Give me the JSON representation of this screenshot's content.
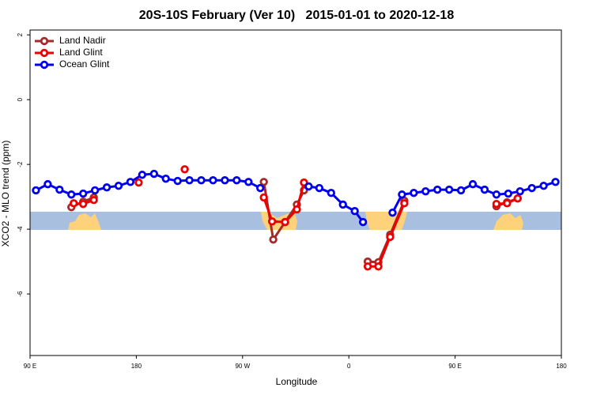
{
  "chart_data": {
    "type": "line",
    "title": "20S-10S February (Ver 10)   2015-01-01 to 2020-12-18",
    "xlabel": "Longitude",
    "ylabel": "XCO2 - MLO trend (ppm)",
    "xlim": [
      90,
      540
    ],
    "xticks": [
      {
        "value": 90,
        "label": "90 E"
      },
      180,
      {
        "value": 270,
        "label": "90 W"
      },
      {
        "value": 360,
        "label": "0"
      },
      {
        "value": 450,
        "label": "90 E"
      },
      {
        "value": 540,
        "label": "180"
      }
    ],
    "ylim": [
      -7.9,
      2.15
    ],
    "yticks": [
      2,
      0,
      -2,
      -4,
      -6
    ],
    "legend": "top-left",
    "series": [
      {
        "name": "Land Nadir",
        "color": "#a52a2a",
        "x": [
          125,
          135,
          144,
          null,
          288,
          296,
          306,
          316,
          322,
          null,
          376,
          385,
          395,
          407,
          null,
          485,
          494,
          503
        ],
        "values": [
          -3.32,
          -3.15,
          -3.02,
          null,
          -2.54,
          -4.32,
          -3.78,
          -3.24,
          -2.8,
          null,
          -5.0,
          -5.02,
          -4.17,
          -3.12,
          null,
          -3.29,
          -3.17,
          -3.05
        ]
      },
      {
        "name": "Land Glint",
        "color": "#ee0000",
        "x": [
          127,
          135,
          144,
          null,
          182,
          null,
          221,
          null,
          288,
          295,
          306,
          316,
          322,
          null,
          376,
          385,
          395,
          407,
          null,
          485,
          494,
          503
        ],
        "values": [
          -3.2,
          -3.22,
          -3.1,
          null,
          -2.56,
          null,
          -2.15,
          null,
          -3.02,
          -3.76,
          -3.78,
          -3.39,
          -2.56,
          null,
          -5.15,
          -5.15,
          -4.24,
          -3.2,
          null,
          -3.22,
          -3.2,
          -3.05
        ]
      },
      {
        "name": "Ocean Glint",
        "color": "#0000ee",
        "x": [
          95,
          105,
          115,
          125,
          135,
          145,
          155,
          165,
          175,
          185,
          195,
          205,
          215,
          225,
          235,
          245,
          255,
          265,
          275,
          285,
          null,
          326,
          335,
          345,
          355,
          365,
          372,
          null,
          397,
          405,
          415,
          425,
          435,
          445,
          455,
          465,
          475,
          485,
          495,
          505,
          515,
          525,
          535
        ],
        "values": [
          -2.8,
          -2.61,
          -2.78,
          -2.93,
          -2.9,
          -2.8,
          -2.71,
          -2.66,
          -2.54,
          -2.32,
          -2.29,
          -2.44,
          -2.51,
          -2.49,
          -2.49,
          -2.49,
          -2.49,
          -2.49,
          -2.54,
          -2.73,
          null,
          -2.68,
          -2.73,
          -2.88,
          -3.24,
          -3.44,
          -3.78,
          null,
          -3.49,
          -2.93,
          -2.88,
          -2.83,
          -2.78,
          -2.78,
          -2.8,
          -2.61,
          -2.78,
          -2.93,
          -2.9,
          -2.83,
          -2.73,
          -2.66,
          -2.54
        ]
      }
    ]
  }
}
